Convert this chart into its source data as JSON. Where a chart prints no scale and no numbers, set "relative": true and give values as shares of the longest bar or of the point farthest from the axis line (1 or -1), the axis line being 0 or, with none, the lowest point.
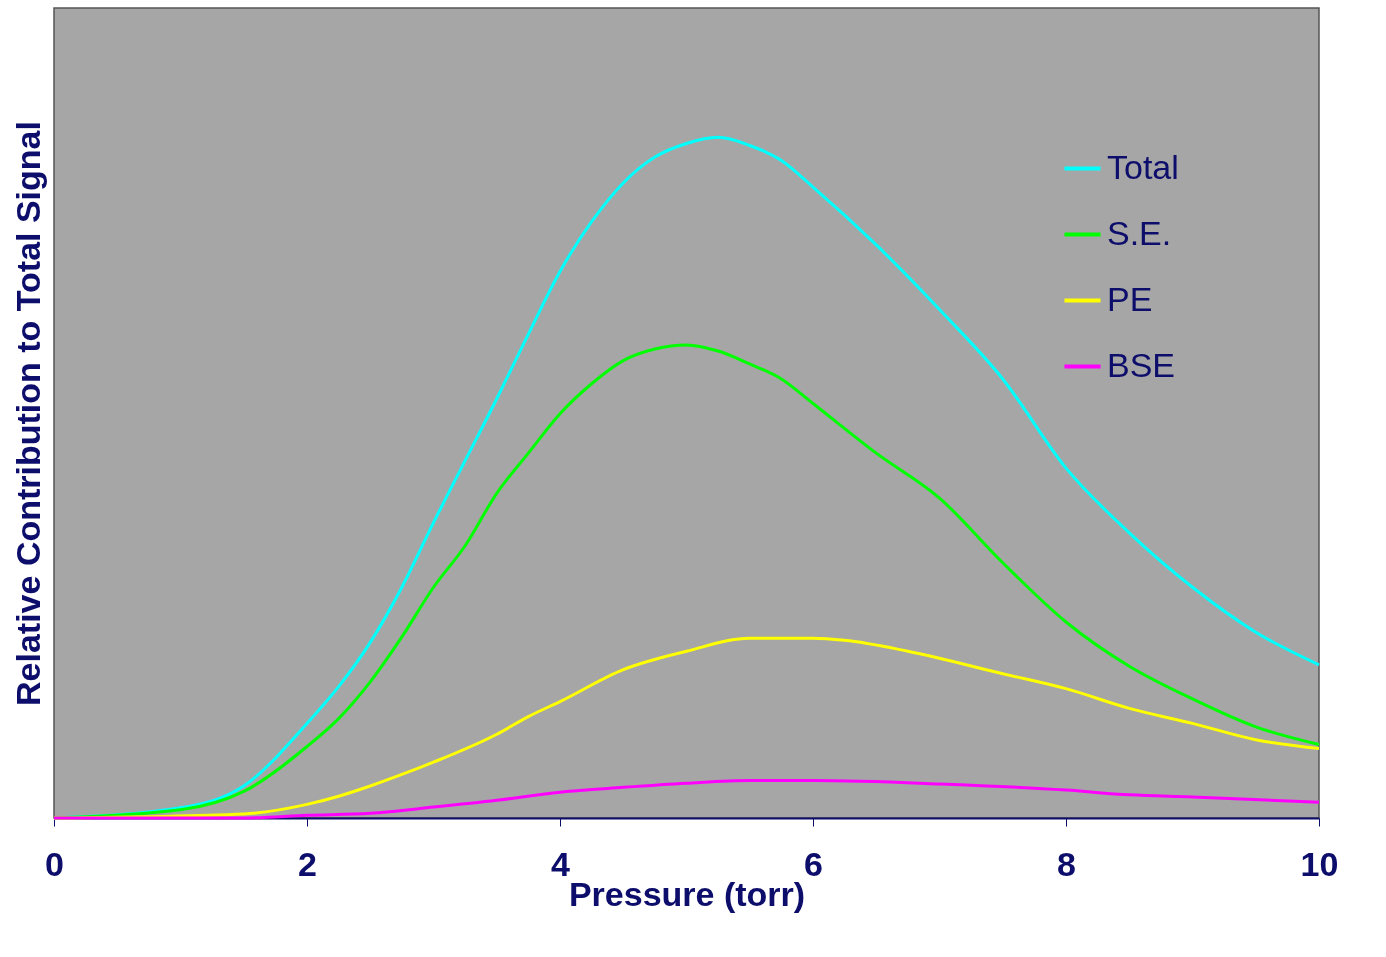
{
  "chart_data": {
    "type": "line",
    "xlabel": "Pressure (torr)",
    "ylabel": "Relative Contribution to Total Signal",
    "relative": true,
    "xlim": [
      0,
      10
    ],
    "xticks": [
      0,
      2,
      4,
      6,
      8,
      10
    ],
    "legend": "top right",
    "series": [
      {
        "name": "Total",
        "color": "#00ffff",
        "x": [
          0,
          1,
          1.5,
          2,
          2.25,
          2.5,
          2.75,
          3,
          3.25,
          3.5,
          3.75,
          4,
          4.25,
          4.5,
          4.75,
          5,
          5.25,
          5.5,
          5.75,
          6,
          6.5,
          7,
          7.5,
          8,
          8.5,
          9,
          9.5,
          10
        ],
        "values": [
          0,
          0.015,
          0.047,
          0.139,
          0.193,
          0.258,
          0.339,
          0.434,
          0.525,
          0.616,
          0.711,
          0.803,
          0.876,
          0.933,
          0.971,
          0.991,
          1,
          0.988,
          0.966,
          0.927,
          0.842,
          0.747,
          0.645,
          0.514,
          0.419,
          0.339,
          0.273,
          0.225
        ]
      },
      {
        "name": "S.E.",
        "color": "#00ff00",
        "x": [
          0,
          1,
          1.5,
          2,
          2.25,
          2.5,
          2.75,
          3,
          3.25,
          3.5,
          3.75,
          4,
          4.25,
          4.5,
          4.75,
          5,
          5.25,
          5.5,
          5.75,
          6,
          6.5,
          7,
          7.5,
          8,
          8.5,
          9,
          9.5,
          10
        ],
        "values": [
          0,
          0.012,
          0.039,
          0.105,
          0.146,
          0.2,
          0.266,
          0.339,
          0.4,
          0.477,
          0.536,
          0.594,
          0.638,
          0.672,
          0.689,
          0.695,
          0.686,
          0.667,
          0.645,
          0.609,
          0.536,
          0.47,
          0.375,
          0.288,
          0.223,
          0.175,
          0.134,
          0.108
        ]
      },
      {
        "name": "PE",
        "color": "#ffff00",
        "x": [
          0,
          1.5,
          2,
          2.25,
          2.5,
          2.75,
          3,
          3.5,
          3.75,
          4,
          4.5,
          5,
          5.5,
          6,
          6.25,
          6.75,
          7.5,
          8,
          8.5,
          9,
          9.5,
          10
        ],
        "values": [
          0,
          0.006,
          0.02,
          0.032,
          0.047,
          0.064,
          0.082,
          0.123,
          0.149,
          0.171,
          0.218,
          0.245,
          0.264,
          0.264,
          0.261,
          0.245,
          0.212,
          0.19,
          0.161,
          0.139,
          0.115,
          0.102
        ]
      },
      {
        "name": "BSE",
        "color": "#ff00ff",
        "x": [
          0,
          1.5,
          2,
          2.5,
          3,
          3.5,
          4,
          4.5,
          5,
          5.5,
          6,
          7,
          8,
          8.5,
          9,
          10
        ],
        "values": [
          0,
          0,
          0.004,
          0.007,
          0.016,
          0.026,
          0.038,
          0.045,
          0.051,
          0.055,
          0.055,
          0.05,
          0.041,
          0.034,
          0.031,
          0.023
        ]
      }
    ]
  }
}
